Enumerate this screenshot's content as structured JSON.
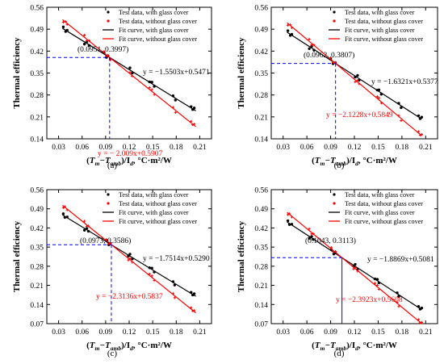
{
  "figure": {
    "legend_entries": [
      {
        "key": "test_with",
        "label": "Test data, with glass cover",
        "color": "#000000",
        "kind": "point"
      },
      {
        "key": "test_without",
        "label": "Test data, without glass cover",
        "color": "#ff0000",
        "kind": "point"
      },
      {
        "key": "fit_with",
        "label": "Fit curve, with glass cover",
        "color": "#000000",
        "kind": "line"
      },
      {
        "key": "fit_without",
        "label": "Fit curve, without glass cover",
        "color": "#ff0000",
        "kind": "line"
      }
    ],
    "colors": {
      "with_cover": "#000000",
      "without_cover": "#ff0000",
      "intersection_guide": "#0000ff",
      "axis": "#000000"
    }
  },
  "chart_data": [
    {
      "panel": "(a)",
      "type": "scatter",
      "ylabel": "Thermal efficiency",
      "xlabel": {
        "t1": "T",
        "s1": "m",
        "t2": "−T",
        "s2": "amb",
        "t3": ")/I",
        "s3": "d",
        "t4": ", °C·m²/W"
      },
      "xlim": [
        0.015,
        0.225
      ],
      "ylim": [
        0.14,
        0.56
      ],
      "xticks": [
        "0.03",
        "0.06",
        "0.09",
        "0.12",
        "0.15",
        "0.18",
        "0.21"
      ],
      "yticks": [
        "0.14",
        "0.21",
        "0.28",
        "0.35",
        "0.42",
        "0.49",
        "0.56"
      ],
      "series": [
        {
          "name": "Fit curve, with glass cover",
          "kind": "line",
          "slope": -1.5503,
          "intercept": 0.5471,
          "x_range": [
            0.035,
            0.205
          ],
          "color": "#000000"
        },
        {
          "name": "Fit curve, without glass cover",
          "kind": "line",
          "slope": -2.009,
          "intercept": 0.5907,
          "x_range": [
            0.035,
            0.205
          ],
          "color": "#ff0000"
        }
      ],
      "x_samples": [
        0.036,
        0.039,
        0.041,
        0.063,
        0.066,
        0.069,
        0.088,
        0.091,
        0.093,
        0.096,
        0.121,
        0.124,
        0.146,
        0.149,
        0.152,
        0.176,
        0.179,
        0.199,
        0.201,
        0.203
      ],
      "intersection": {
        "x": 0.0951,
        "y": 0.3997,
        "label": "(0.0951, 0.3997)"
      },
      "equations": [
        {
          "text": "y = −1.5503x+0.5471",
          "color": "#000000"
        },
        {
          "text": "y = − 2.009x+0.5907",
          "color": "#ff0000"
        }
      ]
    },
    {
      "panel": "(b)",
      "type": "scatter",
      "ylabel": "Thermal efficiency",
      "xlabel": {
        "t1": "T",
        "s1": "m",
        "t2": "−T",
        "s2": "amb",
        "t3": ")/I",
        "s3": "d",
        "t4": ", °C·m²/W"
      },
      "xlim": [
        0.015,
        0.225
      ],
      "ylim": [
        0.14,
        0.56
      ],
      "xticks": [
        "0.03",
        "0.06",
        "0.09",
        "0.12",
        "0.15",
        "0.18",
        "0.21"
      ],
      "yticks": [
        "0.14",
        "0.21",
        "0.28",
        "0.35",
        "0.42",
        "0.49",
        "0.56"
      ],
      "series": [
        {
          "name": "Fit curve, with glass cover",
          "kind": "line",
          "slope": -1.6321,
          "intercept": 0.5377,
          "x_range": [
            0.035,
            0.205
          ],
          "color": "#000000"
        },
        {
          "name": "Fit curve, without glass cover",
          "kind": "line",
          "slope": -2.1228,
          "intercept": 0.5849,
          "x_range": [
            0.035,
            0.205
          ],
          "color": "#ff0000"
        }
      ],
      "x_samples": [
        0.036,
        0.039,
        0.041,
        0.063,
        0.066,
        0.069,
        0.09,
        0.093,
        0.096,
        0.121,
        0.124,
        0.126,
        0.149,
        0.151,
        0.154,
        0.176,
        0.179,
        0.201,
        0.203,
        0.205
      ],
      "intersection": {
        "x": 0.0962,
        "y": 0.3807,
        "label": "(0.0962, 0.3807)"
      },
      "equations": [
        {
          "text": "y = −1.6321x+0.5377",
          "color": "#000000"
        },
        {
          "text": "y = −2.1228x+0.5849",
          "color": "#ff0000"
        }
      ]
    },
    {
      "panel": "(c)",
      "type": "scatter",
      "ylabel": "Thermal efficiency",
      "xlabel": {
        "t1": "T",
        "s1": "m",
        "t2": "−T",
        "s2": "amb",
        "t3": ")/I",
        "s3": "d",
        "t4": ", °C·m²/W"
      },
      "xlim": [
        0.015,
        0.225
      ],
      "ylim": [
        0.07,
        0.56
      ],
      "xticks": [
        "0.03",
        "0.06",
        "0.09",
        "0.12",
        "0.15",
        "0.18",
        "0.21"
      ],
      "yticks": [
        "0.07",
        "0.14",
        "0.21",
        "0.28",
        "0.35",
        "0.42",
        "0.49",
        "0.56"
      ],
      "series": [
        {
          "name": "Fit curve, with glass cover",
          "kind": "line",
          "slope": -1.7514,
          "intercept": 0.529,
          "x_range": [
            0.035,
            0.205
          ],
          "color": "#000000"
        },
        {
          "name": "Fit curve, without glass cover",
          "kind": "line",
          "slope": -2.3136,
          "intercept": 0.5837,
          "x_range": [
            0.035,
            0.205
          ],
          "color": "#ff0000"
        }
      ],
      "x_samples": [
        0.036,
        0.038,
        0.041,
        0.063,
        0.066,
        0.068,
        0.091,
        0.094,
        0.096,
        0.119,
        0.121,
        0.124,
        0.146,
        0.149,
        0.152,
        0.176,
        0.178,
        0.199,
        0.201,
        0.203
      ],
      "intersection": {
        "x": 0.0973,
        "y": 0.3586,
        "label": "(0.0973, 0.3586)"
      },
      "equations": [
        {
          "text": "y = −1.7514x+0.5290",
          "color": "#000000"
        },
        {
          "text": "y = −2.3136x+0.5837",
          "color": "#ff0000"
        }
      ]
    },
    {
      "panel": "(d)",
      "type": "scatter",
      "ylabel": "Thermal efficiency",
      "xlabel": {
        "t1": "T",
        "s1": "m",
        "t2": "−T",
        "s2": "amb",
        "t3": ")/I",
        "s3": "d",
        "t4": ", °C·m²/W"
      },
      "xlim": [
        0.015,
        0.225
      ],
      "ylim": [
        0.07,
        0.56
      ],
      "xticks": [
        "0.03",
        "0.06",
        "0.09",
        "0.12",
        "0.15",
        "0.18",
        "0.21"
      ],
      "yticks": [
        "0.07",
        "0.14",
        "0.21",
        "0.28",
        "0.35",
        "0.42",
        "0.49",
        "0.56"
      ],
      "series": [
        {
          "name": "Fit curve, with glass cover",
          "kind": "line",
          "slope": -1.8869,
          "intercept": 0.5081,
          "x_range": [
            0.035,
            0.205
          ],
          "color": "#000000"
        },
        {
          "name": "Fit curve, without glass cover",
          "kind": "line",
          "slope": -2.3923,
          "intercept": 0.5608,
          "x_range": [
            0.035,
            0.205
          ],
          "color": "#ff0000"
        }
      ],
      "x_samples": [
        0.036,
        0.038,
        0.041,
        0.063,
        0.066,
        0.068,
        0.091,
        0.094,
        0.096,
        0.119,
        0.121,
        0.124,
        0.146,
        0.149,
        0.151,
        0.174,
        0.176,
        0.201,
        0.203,
        0.205
      ],
      "intersection": {
        "x": 0.1043,
        "y": 0.3113,
        "label": "(0.1043, 0.3113)"
      },
      "equations": [
        {
          "text": "y = −1.8869x+0.5081",
          "color": "#000000"
        },
        {
          "text": "y = −2.3923x+0.5608",
          "color": "#ff0000"
        }
      ]
    }
  ]
}
